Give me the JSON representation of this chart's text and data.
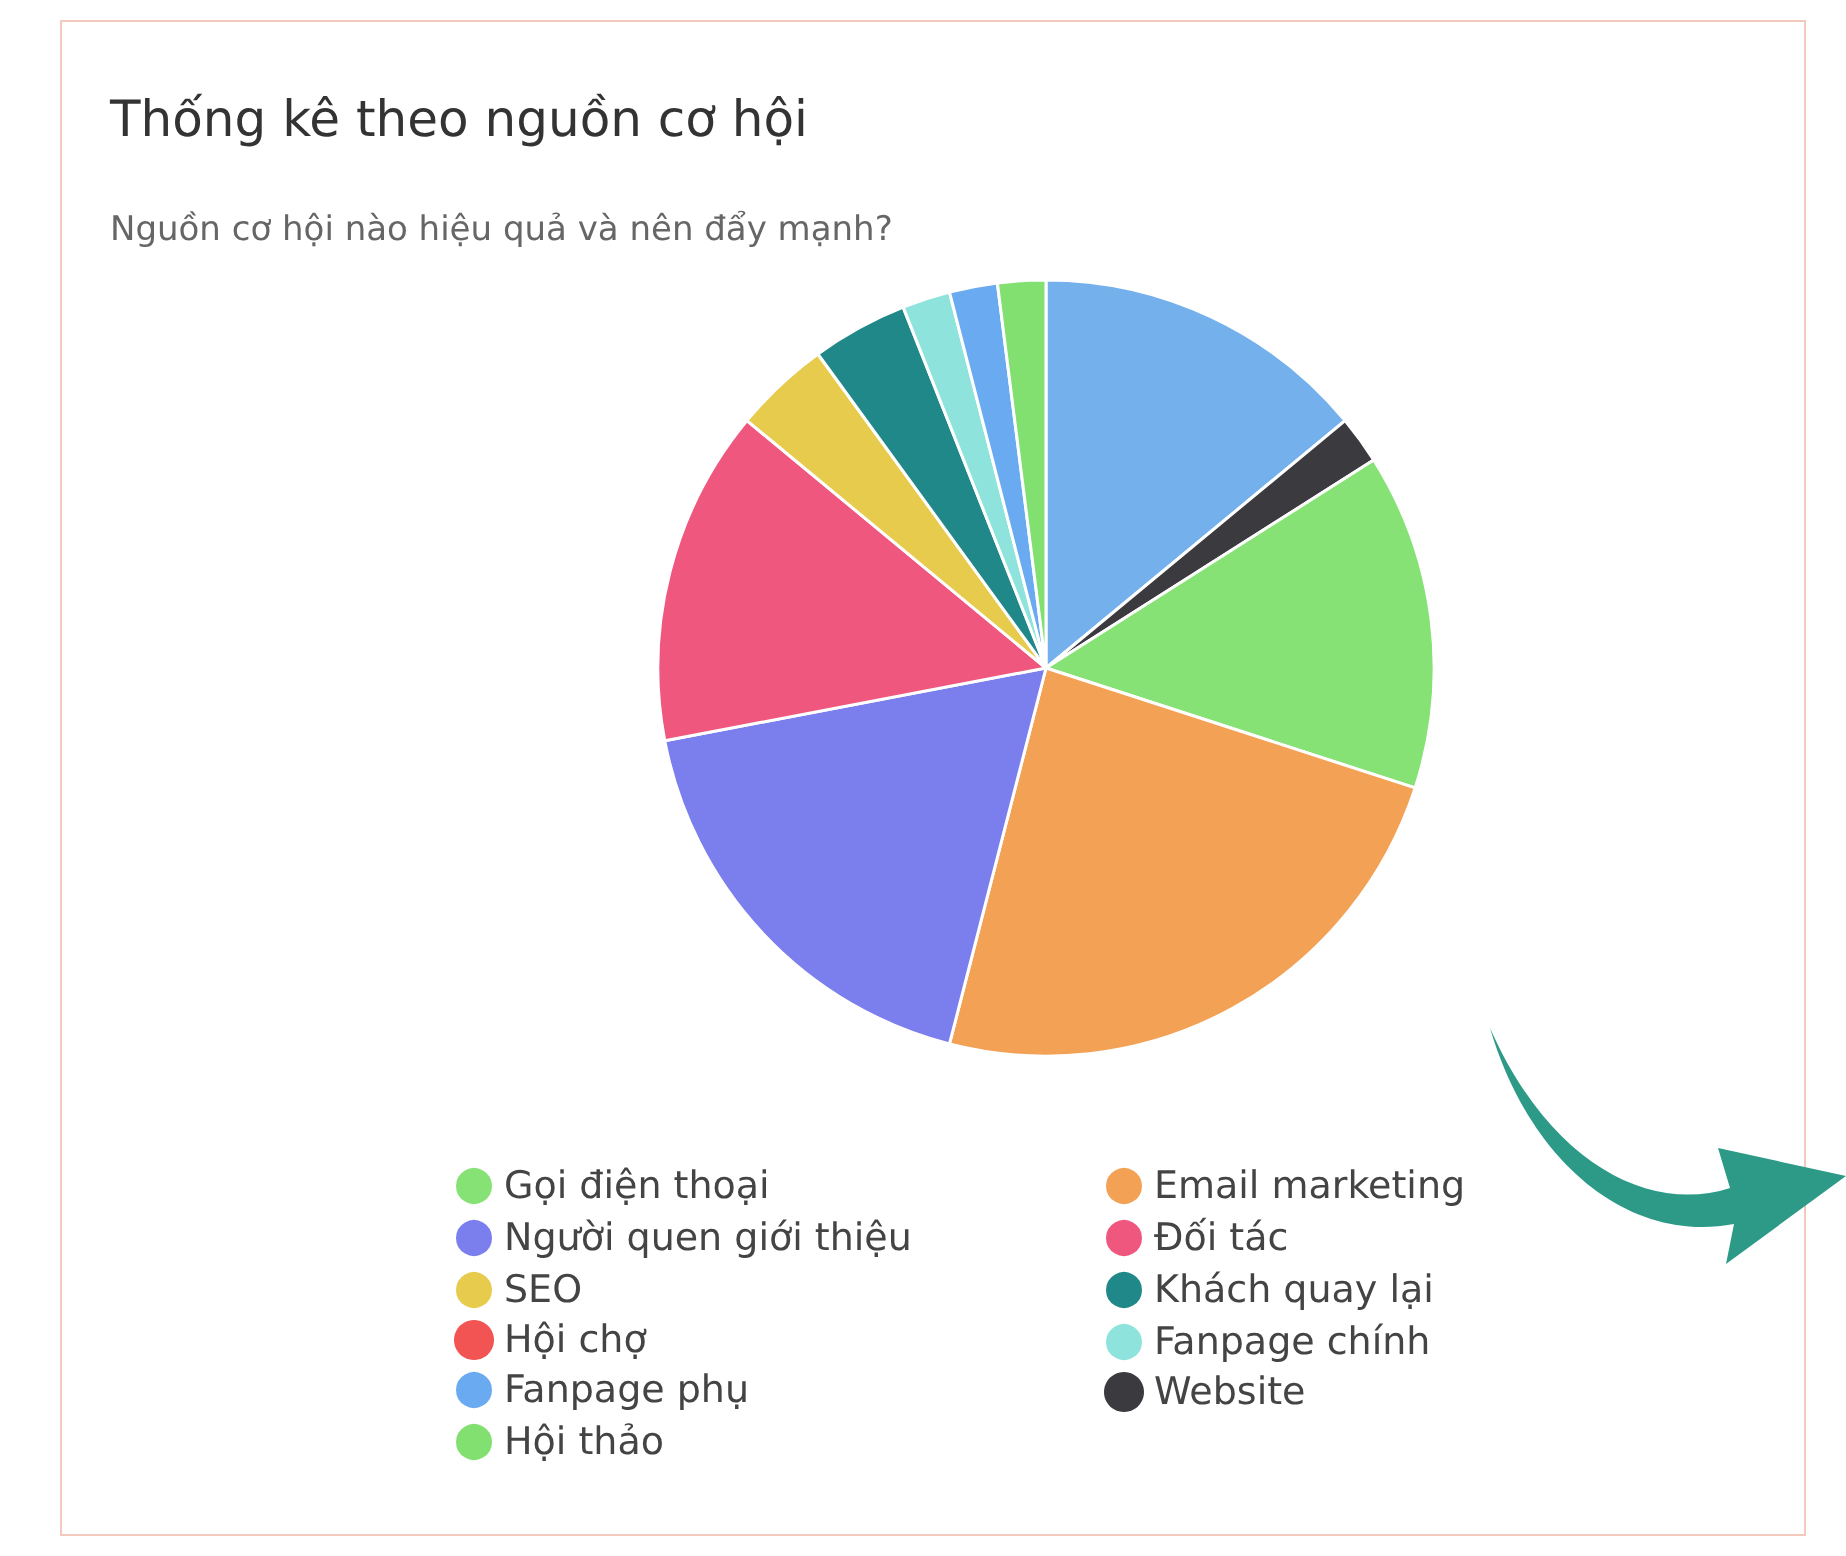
{
  "chart_data": {
    "type": "pie",
    "title": "Thống kê theo nguồn cơ hội",
    "subtitle": "Nguồn cơ hội nào hiệu quả và nên đẩy mạnh?",
    "categories": [
      null,
      null,
      "Gọi điện thoại",
      "Email marketing",
      "Người quen giới thiệu",
      "Đối tác",
      "SEO",
      "Khách quay lại",
      "Hội chợ",
      "Fanpage chính",
      "Fanpage phụ",
      "Website",
      "Hội thảo"
    ],
    "values": [
      14,
      2,
      14,
      24,
      18,
      14,
      4,
      4,
      0,
      2,
      2,
      0,
      2
    ],
    "colors": [
      "#74b0ec",
      "#3a3a3f",
      "#86e274",
      "#f3a154",
      "#7b7fee",
      "#f0577e",
      "#e7cb4c",
      "#21888a",
      "#f25353",
      "#8ee4dc",
      "#6aaaf0",
      "#3a3a3f",
      "#82e070"
    ],
    "legend": "bottom"
  }
}
